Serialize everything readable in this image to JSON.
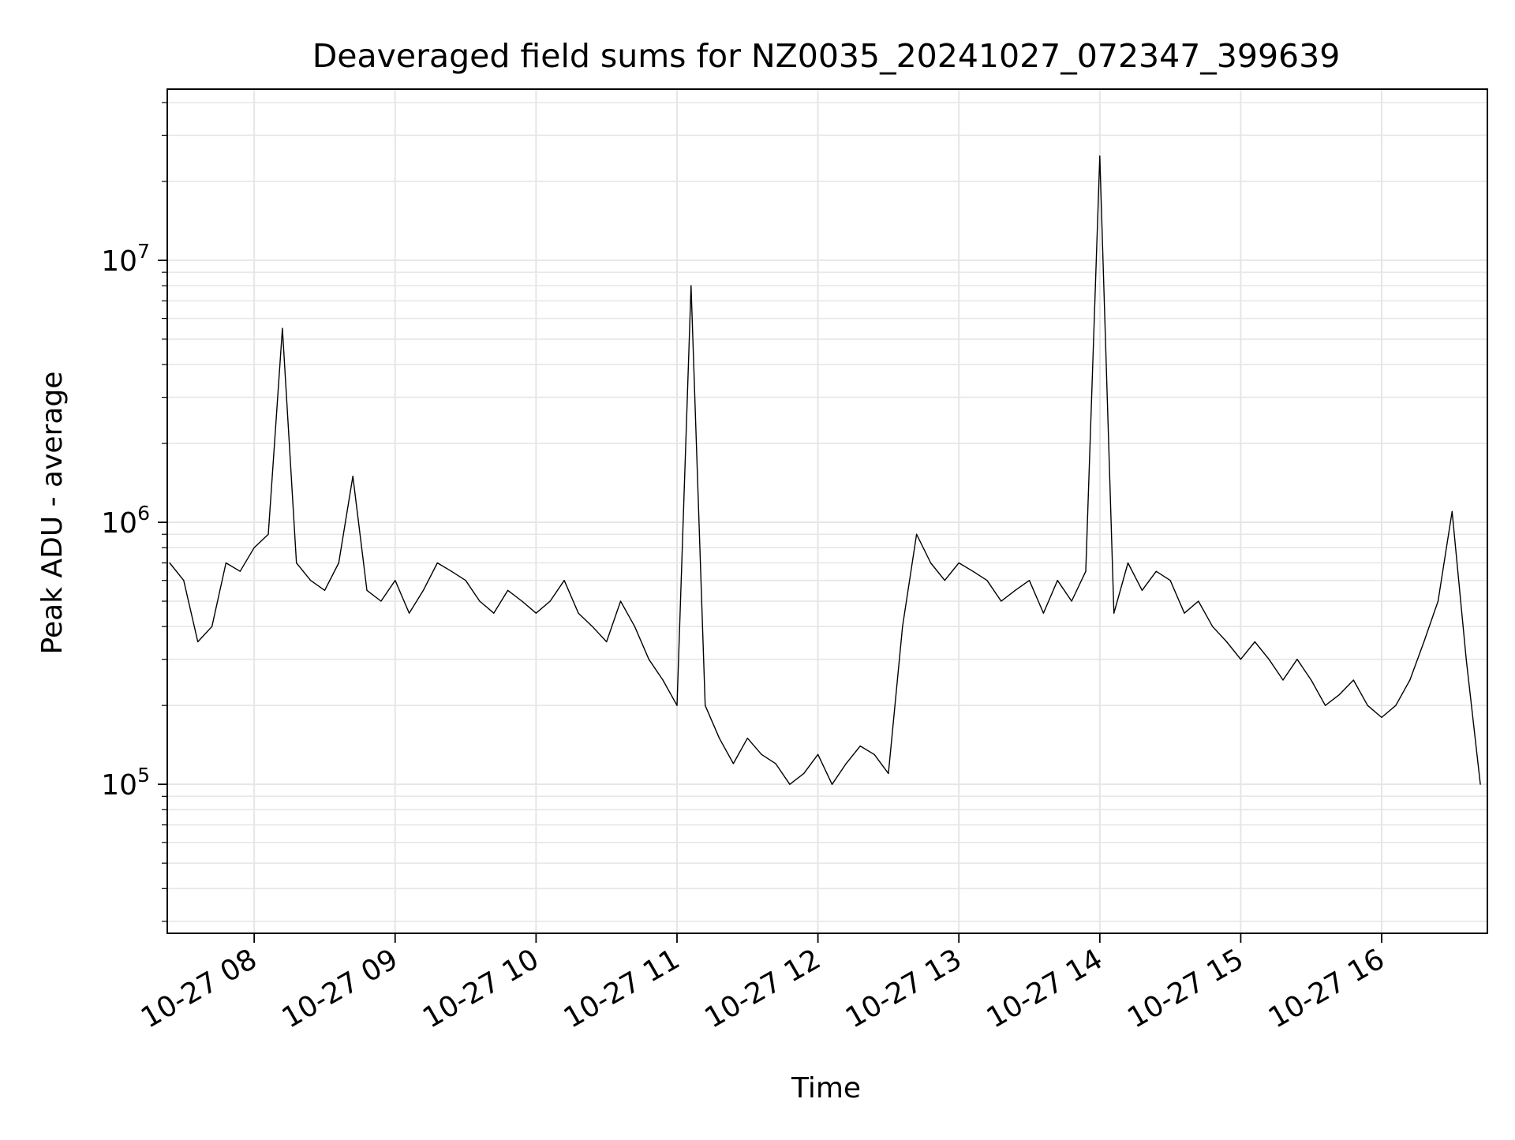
{
  "chart_data": {
    "type": "line",
    "title": "Deaveraged field sums for NZ0035_20241027_072347_399639",
    "xlabel": "Time",
    "ylabel": "Peak ADU - average",
    "yscale": "log",
    "grid": true,
    "xlim": [
      "10-27 07:23",
      "10-27 16:45"
    ],
    "ylim": [
      27000,
      45000000
    ],
    "x_ticks": [
      "10-27 08",
      "10-27 09",
      "10-27 10",
      "10-27 11",
      "10-27 12",
      "10-27 13",
      "10-27 14",
      "10-27 15",
      "10-27 16"
    ],
    "y_ticks": [
      {
        "value": 100000,
        "base": "10",
        "exp": "5"
      },
      {
        "value": 1000000,
        "base": "10",
        "exp": "6"
      },
      {
        "value": 10000000,
        "base": "10",
        "exp": "7"
      }
    ],
    "line_color": "#000000",
    "series": [
      {
        "x": [
          "10-27 07:24",
          "10-27 07:30",
          "10-27 07:36",
          "10-27 07:42",
          "10-27 07:48",
          "10-27 07:54",
          "10-27 08:00",
          "10-27 08:06",
          "10-27 08:12",
          "10-27 08:18",
          "10-27 08:24",
          "10-27 08:30",
          "10-27 08:36",
          "10-27 08:42",
          "10-27 08:48",
          "10-27 08:54",
          "10-27 09:00",
          "10-27 09:06",
          "10-27 09:12",
          "10-27 09:18",
          "10-27 09:24",
          "10-27 09:30",
          "10-27 09:36",
          "10-27 09:42",
          "10-27 09:48",
          "10-27 09:54",
          "10-27 10:00",
          "10-27 10:06",
          "10-27 10:12",
          "10-27 10:18",
          "10-27 10:24",
          "10-27 10:30",
          "10-27 10:36",
          "10-27 10:42",
          "10-27 10:48",
          "10-27 10:54",
          "10-27 11:00",
          "10-27 11:06",
          "10-27 11:12",
          "10-27 11:18",
          "10-27 11:24",
          "10-27 11:30",
          "10-27 11:36",
          "10-27 11:42",
          "10-27 11:48",
          "10-27 11:54",
          "10-27 12:00",
          "10-27 12:06",
          "10-27 12:12",
          "10-27 12:18",
          "10-27 12:24",
          "10-27 12:30",
          "10-27 12:36",
          "10-27 12:42",
          "10-27 12:48",
          "10-27 12:54",
          "10-27 13:00",
          "10-27 13:06",
          "10-27 13:12",
          "10-27 13:18",
          "10-27 13:24",
          "10-27 13:30",
          "10-27 13:36",
          "10-27 13:42",
          "10-27 13:48",
          "10-27 13:54",
          "10-27 14:00",
          "10-27 14:06",
          "10-27 14:12",
          "10-27 14:18",
          "10-27 14:24",
          "10-27 14:30",
          "10-27 14:36",
          "10-27 14:42",
          "10-27 14:48",
          "10-27 14:54",
          "10-27 15:00",
          "10-27 15:06",
          "10-27 15:12",
          "10-27 15:18",
          "10-27 15:24",
          "10-27 15:30",
          "10-27 15:36",
          "10-27 15:42",
          "10-27 15:48",
          "10-27 15:54",
          "10-27 16:00",
          "10-27 16:06",
          "10-27 16:12",
          "10-27 16:18",
          "10-27 16:24",
          "10-27 16:30",
          "10-27 16:36",
          "10-27 16:42"
        ],
        "y": [
          700000,
          600000,
          350000,
          400000,
          700000,
          650000,
          800000,
          900000,
          5500000,
          700000,
          600000,
          550000,
          700000,
          1500000,
          550000,
          500000,
          600000,
          450000,
          550000,
          700000,
          650000,
          600000,
          500000,
          450000,
          550000,
          500000,
          450000,
          500000,
          600000,
          450000,
          400000,
          350000,
          500000,
          400000,
          300000,
          250000,
          200000,
          8000000,
          200000,
          150000,
          120000,
          150000,
          130000,
          120000,
          100000,
          110000,
          130000,
          100000,
          120000,
          140000,
          130000,
          110000,
          400000,
          900000,
          700000,
          600000,
          700000,
          650000,
          600000,
          500000,
          550000,
          600000,
          450000,
          600000,
          500000,
          650000,
          25000000,
          450000,
          700000,
          550000,
          650000,
          600000,
          450000,
          500000,
          400000,
          350000,
          300000,
          350000,
          300000,
          250000,
          300000,
          250000,
          200000,
          220000,
          250000,
          200000,
          180000,
          200000,
          250000,
          350000,
          500000,
          1100000,
          300000,
          100000
        ]
      }
    ]
  }
}
